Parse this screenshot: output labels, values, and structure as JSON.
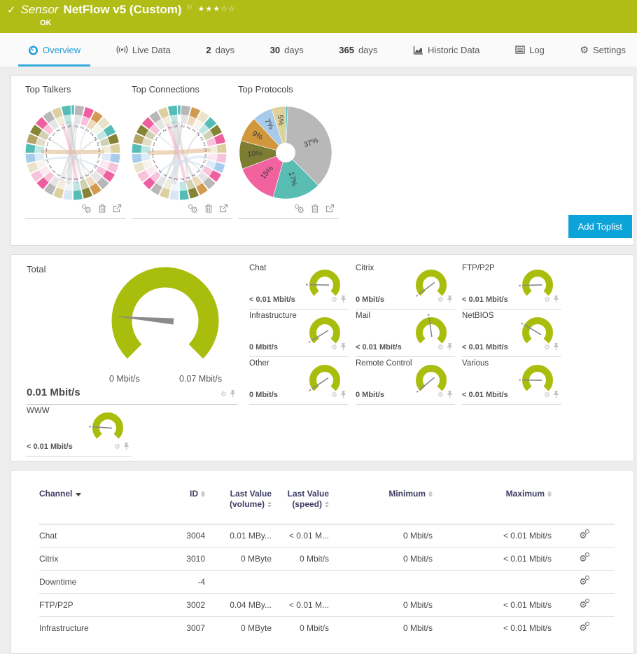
{
  "header": {
    "check_icon": "✓",
    "kind_label": "Sensor",
    "sensor_name": "NetFlow v5 (Custom)",
    "flag_icon": "⚐",
    "stars": "★★★☆☆",
    "status": "OK",
    "bg_color": "#b0bd16"
  },
  "tabs": [
    {
      "label": "Overview",
      "icon": "gauge",
      "active": true
    },
    {
      "label": "Live Data",
      "icon": "broadcast",
      "active": false
    },
    {
      "num": "2",
      "label": "days",
      "active": false
    },
    {
      "num": "30",
      "label": "days",
      "active": false
    },
    {
      "num": "365",
      "label": "days",
      "active": false
    },
    {
      "label": "Historic Data",
      "icon": "chart",
      "active": false
    },
    {
      "label": "Log",
      "icon": "log",
      "active": false
    },
    {
      "label": "Settings",
      "icon": "gear",
      "active": false
    }
  ],
  "toplists": {
    "add_button_label": "Add Toplist"
  },
  "chart_data": [
    {
      "type": "chord",
      "title": "Top Talkers",
      "sliver_color": "#54bdc4",
      "ring_colors": [
        "#b8b8b8",
        "#ee5fa0",
        "#d29a50",
        "#eae3cb",
        "#56bdb6",
        "#848434",
        "#ddd0a0",
        "#a9cbec",
        "#f6c3da",
        "#ee5fa0",
        "#b8b8b8",
        "#d29a50",
        "#848434",
        "#56bdb6",
        "#d8e6f6",
        "#ddd0a0",
        "#b8b8b8",
        "#ee5fa0",
        "#f6c3da",
        "#eae3cb",
        "#a9cbec",
        "#56bdb6",
        "#b5a468",
        "#848434",
        "#ee5fa0",
        "#b8b8b8",
        "#ddd0a0",
        "#56bdb6"
      ],
      "ring_labels": [
        "2",
        "2",
        "2",
        "2",
        "2",
        "2",
        "2",
        "2",
        "2",
        "2",
        "2",
        "2",
        "2",
        "2",
        "1",
        "1",
        "1",
        "1",
        "1",
        "1",
        "1",
        "1",
        "1",
        "1",
        "1",
        "2",
        "2",
        "5"
      ],
      "chords": [
        {
          "a": 352,
          "b": 188,
          "w": 7,
          "c": "#cfcfcf"
        },
        {
          "a": 356,
          "b": 160,
          "w": 4,
          "c": "#cfcfcf"
        },
        {
          "a": 3,
          "b": 205,
          "w": 3,
          "c": "#cfcfcf"
        },
        {
          "a": 8,
          "b": 178,
          "w": 2,
          "c": "#cfcfcf"
        },
        {
          "a": 272,
          "b": 88,
          "w": 6,
          "c": "#e2b483"
        },
        {
          "a": 340,
          "b": 172,
          "w": 4,
          "c": "#f3b0d0"
        },
        {
          "a": 120,
          "b": 255,
          "w": 3,
          "c": "#cfe0f2"
        },
        {
          "a": 140,
          "b": 300,
          "w": 2,
          "c": "#cfcfcf"
        },
        {
          "a": 60,
          "b": 200,
          "w": 2,
          "c": "#cfcfcf"
        },
        {
          "a": 30,
          "b": 150,
          "w": 2,
          "c": "#dddddd"
        }
      ]
    },
    {
      "type": "chord",
      "title": "Top Connections",
      "sliver_color": "#54bdc4",
      "ring_colors": [
        "#b8b8b8",
        "#d29a50",
        "#eae3cb",
        "#56bdb6",
        "#848434",
        "#ee5fa0",
        "#ddd0a0",
        "#f6c3da",
        "#a9cbec",
        "#ee5fa0",
        "#b8b8b8",
        "#d29a50",
        "#848434",
        "#56bdb6",
        "#d8e6f6",
        "#ddd0a0",
        "#b8b8b8",
        "#ee5fa0",
        "#f6c3da",
        "#eae3cb",
        "#a9cbec",
        "#56bdb6",
        "#b5a468",
        "#848434",
        "#ee5fa0",
        "#b8b8b8",
        "#ddd0a0",
        "#56bdb6"
      ],
      "ring_labels": [
        "2",
        "2",
        "2",
        "2",
        "2",
        "2",
        "2",
        "2",
        "2",
        "2",
        "2",
        "2",
        "2",
        "2",
        "2",
        "1",
        "1",
        "1",
        "1",
        "1",
        "1",
        "1",
        "1",
        "1",
        "1",
        "2",
        "2",
        "5"
      ],
      "chords": [
        {
          "a": 350,
          "b": 190,
          "w": 8,
          "c": "#cfcfcf"
        },
        {
          "a": 358,
          "b": 150,
          "w": 4,
          "c": "#cfcfcf"
        },
        {
          "a": 5,
          "b": 210,
          "w": 3,
          "c": "#cfcfcf"
        },
        {
          "a": 270,
          "b": 85,
          "w": 6,
          "c": "#e2b483"
        },
        {
          "a": 338,
          "b": 168,
          "w": 5,
          "c": "#f3b0d0"
        },
        {
          "a": 200,
          "b": 100,
          "w": 4,
          "c": "#cfe0f2"
        },
        {
          "a": 225,
          "b": 120,
          "w": 3,
          "c": "#cfe0f2"
        },
        {
          "a": 45,
          "b": 160,
          "w": 2,
          "c": "#cfcfcf"
        },
        {
          "a": 310,
          "b": 130,
          "w": 2,
          "c": "#dddddd"
        }
      ]
    },
    {
      "type": "pie",
      "title": "Top Protocols",
      "slices": [
        {
          "label": "",
          "value": 0.8,
          "color": "#54bdc4"
        },
        {
          "label": "37%",
          "value": 37,
          "color": "#b8b8b8"
        },
        {
          "label": "17%",
          "value": 17,
          "color": "#5abdb3"
        },
        {
          "label": "15%",
          "value": 15,
          "color": "#f2629f"
        },
        {
          "label": "10%",
          "value": 10,
          "color": "#7c7d33"
        },
        {
          "label": "9%",
          "value": 9,
          "color": "#d0973d"
        },
        {
          "label": "7%",
          "value": 7,
          "color": "#a9cbe9"
        },
        {
          "label": "5%",
          "value": 5,
          "color": "#ded29b"
        }
      ]
    }
  ],
  "gauges": {
    "gauge_color": "#a9bd0d",
    "needle_color": "#8b8b8b",
    "total": {
      "name": "Total",
      "value": "0.01 Mbit/s",
      "min_label": "0 Mbit/s",
      "max_label": "0.07 Mbit/s",
      "fraction": 0.185
    },
    "channels": [
      {
        "name": "Chat",
        "value": "< 0.01 Mbit/s",
        "fraction": 0.17
      },
      {
        "name": "Citrix",
        "value": "0 Mbit/s",
        "fraction": 0.03
      },
      {
        "name": "FTP/P2P",
        "value": "< 0.01 Mbit/s",
        "fraction": 0.16
      },
      {
        "name": "Infrastructure",
        "value": "0 Mbit/s",
        "fraction": 0.05
      },
      {
        "name": "Mail",
        "value": "< 0.01 Mbit/s",
        "fraction": 0.47
      },
      {
        "name": "NetBIOS",
        "value": "< 0.01 Mbit/s",
        "fraction": 0.28
      },
      {
        "name": "Other",
        "value": "0 Mbit/s",
        "fraction": 0.04
      },
      {
        "name": "Remote Control",
        "value": "0 Mbit/s",
        "fraction": 0.02
      },
      {
        "name": "Various",
        "value": "< 0.01 Mbit/s",
        "fraction": 0.17
      },
      {
        "name": "WWW",
        "value": "< 0.01 Mbit/s",
        "fraction": 0.18
      }
    ]
  },
  "table": {
    "columns": [
      {
        "label": "Channel",
        "sorted": true
      },
      {
        "label": "ID"
      },
      {
        "label": "Last Value",
        "sub": "(volume)"
      },
      {
        "label": "Last Value",
        "sub": "(speed)"
      },
      {
        "label": "Minimum"
      },
      {
        "label": "Maximum"
      }
    ],
    "rows": [
      {
        "channel": "Chat",
        "id": "3004",
        "volume": "0.01 MBy...",
        "speed": "< 0.01 M...",
        "min": "0 Mbit/s",
        "max": "< 0.01 Mbit/s"
      },
      {
        "channel": "Citrix",
        "id": "3010",
        "volume": "0 MByte",
        "speed": "0 Mbit/s",
        "min": "0 Mbit/s",
        "max": "< 0.01 Mbit/s"
      },
      {
        "channel": "Downtime",
        "id": "-4",
        "volume": "",
        "speed": "",
        "min": "",
        "max": ""
      },
      {
        "channel": "FTP/P2P",
        "id": "3002",
        "volume": "0.04 MBy...",
        "speed": "< 0.01 M...",
        "min": "0 Mbit/s",
        "max": "< 0.01 Mbit/s"
      },
      {
        "channel": "Infrastructure",
        "id": "3007",
        "volume": "0 MByte",
        "speed": "0 Mbit/s",
        "min": "0 Mbit/s",
        "max": "< 0.01 Mbit/s"
      }
    ]
  },
  "colors": {
    "accent_blue": "#0ba3d8",
    "active_tab_blue": "#1a9cd8",
    "header_green": "#b0bd16",
    "gauge_green": "#a9bd0d"
  }
}
